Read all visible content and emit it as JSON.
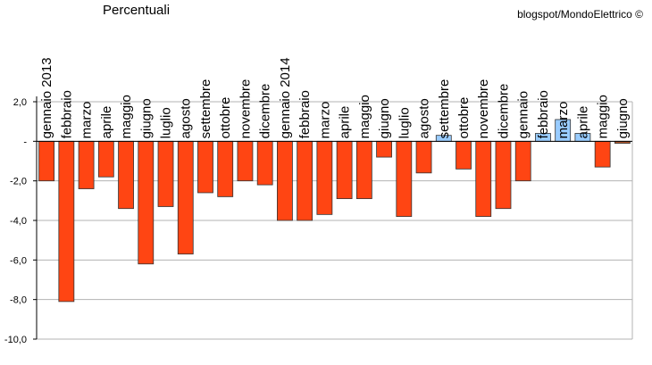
{
  "chart_data": {
    "type": "bar",
    "title": "Percentuali",
    "credit": "blogspot/MondoElettrico ©",
    "xlabel": "",
    "ylabel": "",
    "ylim": [
      -10,
      2
    ],
    "y_ticks": [
      2,
      0,
      -2,
      -4,
      -6,
      -8,
      -10
    ],
    "y_tick_labels": [
      "2,0",
      "-",
      "-2,0",
      "-4,0",
      "-6,0",
      "-8,0",
      "-10,0"
    ],
    "grid": true,
    "categories": [
      "gennaio 2013",
      "febbraio",
      "marzo",
      "aprile",
      "maggio",
      "giugno",
      "luglio",
      "agosto",
      "settembre",
      "ottobre",
      "novembre",
      "dicembre",
      "gennaio 2014",
      "febbraio",
      "marzo",
      "aprile",
      "maggio",
      "giugno",
      "luglio",
      "agosto",
      "settembre",
      "ottobre",
      "novembre",
      "dicembre",
      "gennaio",
      "febbraio",
      "marzo",
      "aprile",
      "maggio",
      "giugno"
    ],
    "values": [
      -2.0,
      -8.1,
      -2.4,
      -1.8,
      -3.4,
      -6.2,
      -3.3,
      -5.7,
      -2.6,
      -2.8,
      -2.0,
      -2.2,
      -4.0,
      -4.0,
      -3.7,
      -2.9,
      -2.9,
      -0.8,
      -3.8,
      -1.6,
      0.3,
      -1.4,
      -3.8,
      -3.4,
      -2.0,
      0.4,
      1.1,
      0.4,
      -1.3,
      -0.1
    ],
    "colors": {
      "negative": "#ff4513",
      "positive": "#99ccff",
      "last": "#b3572b",
      "axis": "#000000",
      "grid": "#b3b3b3"
    }
  }
}
